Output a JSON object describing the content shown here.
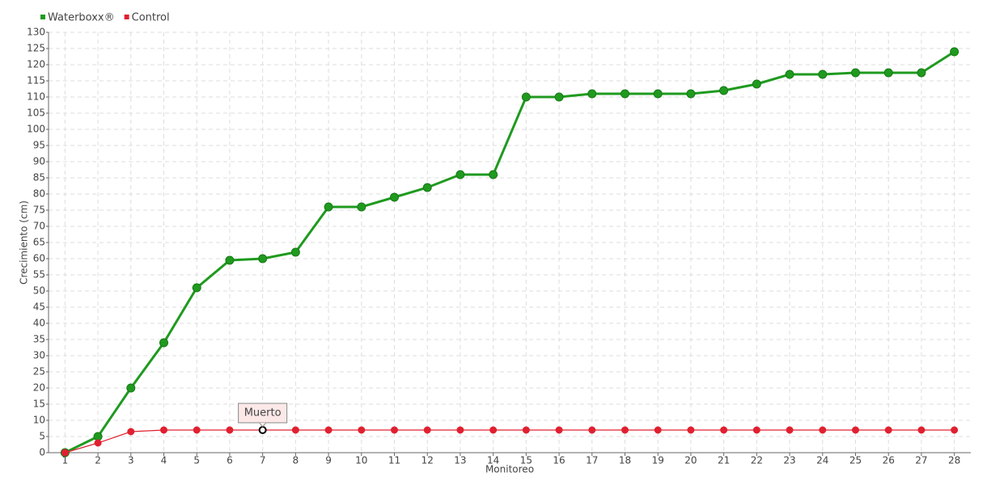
{
  "chart_data": {
    "type": "line",
    "x_label": "Monitoreo",
    "y_label": "Crecimiento (cm)",
    "categories": [
      "1",
      "2",
      "3",
      "4",
      "5",
      "6",
      "7",
      "8",
      "9",
      "10",
      "11",
      "12",
      "13",
      "14",
      "15",
      "16",
      "17",
      "18",
      "19",
      "20",
      "21",
      "22",
      "23",
      "24",
      "25",
      "26",
      "27",
      "28"
    ],
    "series": [
      {
        "name": "Waterboxx®",
        "color": "#1f9a1f",
        "values": [
          0,
          5,
          20,
          34,
          51,
          59.5,
          60,
          62,
          76,
          76,
          79,
          82,
          86,
          86,
          110,
          110,
          111,
          111,
          111,
          111,
          112,
          114,
          117,
          117,
          117.5,
          117.5,
          117.5,
          124
        ]
      },
      {
        "name": "Control",
        "color": "#e02030",
        "values": [
          0,
          3,
          6.5,
          7,
          7,
          7,
          7,
          7,
          7,
          7,
          7,
          7,
          7,
          7,
          7,
          7,
          7,
          7,
          7,
          7,
          7,
          7,
          7,
          7,
          7,
          7,
          7,
          7
        ]
      }
    ],
    "annotations": [
      {
        "text": "Muerto",
        "series": "Control",
        "category": "7"
      }
    ],
    "ylim": [
      0,
      130
    ],
    "yticks": [
      0,
      5,
      10,
      15,
      20,
      25,
      30,
      35,
      40,
      45,
      50,
      55,
      60,
      65,
      70,
      75,
      80,
      85,
      90,
      95,
      100,
      105,
      110,
      115,
      120,
      125,
      130
    ],
    "grid": true,
    "legend": "top-left"
  }
}
